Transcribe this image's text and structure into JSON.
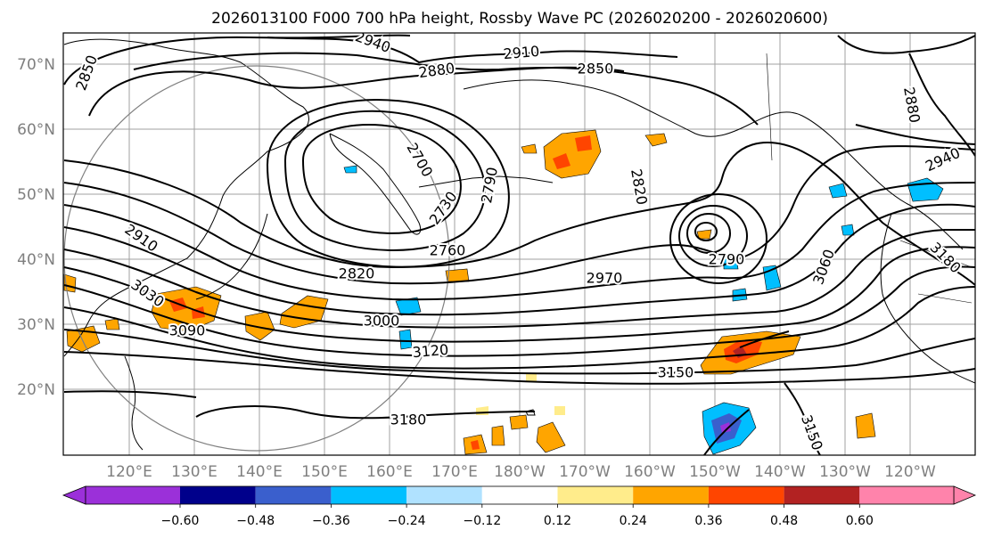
{
  "title": "2026013100 F000 700 hPa height, Rossby Wave PC (2026020200 - 2026020600)",
  "lat_labels": [
    "70°N",
    "60°N",
    "50°N",
    "40°N",
    "30°N",
    "20°N"
  ],
  "lon_labels": [
    "120°E",
    "130°E",
    "140°E",
    "150°E",
    "160°E",
    "170°E",
    "180°W",
    "170°W",
    "160°W",
    "150°W",
    "140°W",
    "130°W",
    "120°W"
  ],
  "contour_labels": [
    "2940",
    "2910",
    "2880",
    "2850",
    "2850",
    "2880",
    "2700",
    "2790",
    "2730",
    "2820",
    "2940",
    "2910",
    "2760",
    "2820",
    "2970",
    "2790",
    "3060",
    "3180",
    "3030",
    "3090",
    "3000",
    "3120",
    "3150",
    "3180",
    "3150"
  ],
  "colorbar": {
    "colors": [
      "#9b30d9",
      "#00008b",
      "#3a5fcd",
      "#00bfff",
      "#b0e2ff",
      "#ffffff",
      "#ffec8b",
      "#ffa500",
      "#ff4500",
      "#b22222",
      "#ff83ab"
    ],
    "ticks": [
      "−0.60",
      "−0.48",
      "−0.36",
      "−0.24",
      "−0.12",
      "0.12",
      "0.24",
      "0.36",
      "0.48",
      "0.60"
    ]
  }
}
